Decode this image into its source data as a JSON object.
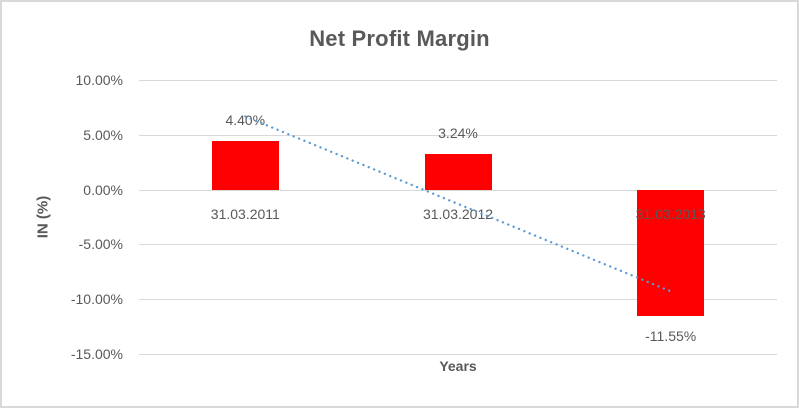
{
  "chart_data": {
    "type": "bar",
    "title": "Net Profit Margin",
    "xlabel": "Years",
    "ylabel": "IN (%)",
    "categories": [
      "31.03.2011",
      "31.03.2012",
      "31.03.2013"
    ],
    "values": [
      4.4,
      3.24,
      -11.55
    ],
    "data_labels": [
      "4.40%",
      "3.24%",
      "-11.55%"
    ],
    "ylim": [
      -15,
      10
    ],
    "ytick_values": [
      10,
      5,
      0,
      -5,
      -10,
      -15
    ],
    "ytick_labels": [
      "10.00%",
      "5.00%",
      "0.00%",
      "-5.00%",
      "-10.00%",
      "-15.00%"
    ],
    "grid": true,
    "legend": "none",
    "colors": {
      "bar": "#ff0000",
      "gridline": "#d9d9d9",
      "text": "#595959",
      "trendline": "#5b9bd5"
    },
    "trendline": {
      "type": "linear",
      "style": "dotted",
      "start_value": 6.67,
      "end_value": -9.28
    }
  }
}
